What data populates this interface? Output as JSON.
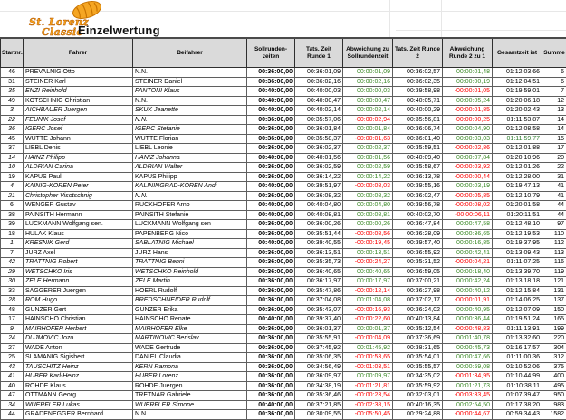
{
  "logo": {
    "line1": "St. Lorenz",
    "line2": "Classic"
  },
  "title": "Einzelwertung",
  "colors": {
    "band_cyan": "#6CE6E6",
    "dev_pos_bg": "#84C84C",
    "dev_pos_text": "#3C8A28",
    "dev_neg_bg": "#FF8060",
    "dev_neg_text": "#FF0000",
    "total_highlight_bg": "#84C84C",
    "header_bg": "#DADADA",
    "logo_orange": "#F59B1E"
  },
  "table": {
    "columns": [
      {
        "key": "nr",
        "label": "Startnr."
      },
      {
        "key": "fahrer",
        "label": "Fahrer"
      },
      {
        "key": "beifahrer",
        "label": "Beifahrer"
      },
      {
        "key": "soll",
        "label": "Sollrunden-zeiten"
      },
      {
        "key": "t1",
        "label": "Tats. Zeit Runde 1"
      },
      {
        "key": "d1",
        "label": "Abweichung zu Sollrundenzeit"
      },
      {
        "key": "t2",
        "label": "Tats. Zeit Runde 2"
      },
      {
        "key": "d2",
        "label": "Abweichung Runde 2 zu 1"
      },
      {
        "key": "total",
        "label": "Gesamtzeit ist"
      },
      {
        "key": "summe",
        "label": "Summe"
      }
    ],
    "rows": [
      {
        "nr": "46",
        "fahrer": "PREVALNIG Otto",
        "beifahrer": "N.N.",
        "soll": "00:36:00,00",
        "t1": "00:36:01,09",
        "d1": "00:00:01,09",
        "t2": "00:36:02,57",
        "d2": "00:00:01,48",
        "total": "01:12:03,66",
        "summe": "6",
        "band": false,
        "italic": false,
        "total_hl": false
      },
      {
        "nr": "31",
        "fahrer": "STEINER Karl",
        "beifahrer": "STEINER Daniel",
        "soll": "00:36:00,00",
        "t1": "00:36:02,16",
        "d1": "00:00:02,16",
        "t2": "00:36:02,35",
        "d2": "00:00:00,19",
        "total": "01:12:04,51",
        "summe": "6",
        "band": false,
        "italic": false,
        "total_hl": false
      },
      {
        "nr": "35",
        "fahrer": "ENZI Reinhold",
        "beifahrer": "FANTONI Klaus",
        "soll": "00:40:00,00",
        "t1": "00:40:00,03",
        "d1": "00:00:00,03",
        "t2": "00:39:58,98",
        "d2": "-00:00:01,05",
        "total": "01:19:59,01",
        "summe": "7",
        "band": true,
        "italic": true,
        "total_hl": false
      },
      {
        "nr": "49",
        "fahrer": "KOTSCHNIG Christian",
        "beifahrer": "N.N.",
        "soll": "00:40:00,00",
        "t1": "00:40:00,47",
        "d1": "00:00:00,47",
        "t2": "00:40:05,71",
        "d2": "00:00:05,24",
        "total": "01:20:06,18",
        "summe": "12",
        "band": false,
        "italic": false,
        "total_hl": false
      },
      {
        "nr": "3",
        "fahrer": "AICHBAUER Juergen",
        "beifahrer": "SKUK Jeanette",
        "soll": "00:40:00,00",
        "t1": "00:40:02,14",
        "d1": "00:00:02,14",
        "t2": "00:40:00,29",
        "d2": "-00:00:01,85",
        "total": "01:20:02,43",
        "summe": "13",
        "band": true,
        "italic": true,
        "total_hl": false
      },
      {
        "nr": "22",
        "fahrer": "FEUNIK Josef",
        "beifahrer": "N.N.",
        "soll": "00:36:00,00",
        "t1": "00:35:57,06",
        "d1": "-00:00:02,94",
        "t2": "00:35:56,81",
        "d2": "-00:00:00,25",
        "total": "01:11:53,87",
        "summe": "14",
        "band": false,
        "italic": true,
        "total_hl": false
      },
      {
        "nr": "36",
        "fahrer": "IGERC Josef",
        "beifahrer": "IGERC Stefanie",
        "soll": "00:36:00,00",
        "t1": "00:36:01,84",
        "d1": "00:00:01,84",
        "t2": "00:36:06,74",
        "d2": "00:00:04,90",
        "total": "01:12:08,58",
        "summe": "14",
        "band": false,
        "italic": true,
        "total_hl": false
      },
      {
        "nr": "45",
        "fahrer": "WUTTE Johann",
        "beifahrer": "WUTTE Florian",
        "soll": "00:36:00,00",
        "t1": "00:35:58,37",
        "d1": "-00:00:01,63",
        "t2": "00:36:01,40",
        "d2": "00:00:03,03",
        "total": "01:11:59,77",
        "summe": "15",
        "band": false,
        "italic": false,
        "total_hl": true
      },
      {
        "nr": "37",
        "fahrer": "LIEBL Denis",
        "beifahrer": "LIEBL Leonie",
        "soll": "00:36:00,00",
        "t1": "00:36:02,37",
        "d1": "00:00:02,37",
        "t2": "00:35:59,51",
        "d2": "-00:00:02,86",
        "total": "01:12:01,88",
        "summe": "17",
        "band": false,
        "italic": false,
        "total_hl": false
      },
      {
        "nr": "14",
        "fahrer": "HAINZ Philipp",
        "beifahrer": "HANIZ Johanna",
        "soll": "00:40:00,00",
        "t1": "00:40:01,56",
        "d1": "00:00:01,56",
        "t2": "00:40:09,40",
        "d2": "00:00:07,84",
        "total": "01:20:10,96",
        "summe": "20",
        "band": true,
        "italic": true,
        "total_hl": false
      },
      {
        "nr": "10",
        "fahrer": "ALDRIAN Carina",
        "beifahrer": "ALDRIAN Walter",
        "soll": "00:36:00,00",
        "t1": "00:36:02,59",
        "d1": "00:00:02,59",
        "t2": "00:35:58,67",
        "d2": "-00:00:03,92",
        "total": "01:12:01,26",
        "summe": "22",
        "band": false,
        "italic": true,
        "total_hl": false
      },
      {
        "nr": "19",
        "fahrer": "KAPUS Paul",
        "beifahrer": "KAPUS Philipp",
        "soll": "00:36:00,00",
        "t1": "00:36:14,22",
        "d1": "00:00:14,22",
        "t2": "00:36:13,78",
        "d2": "-00:00:00,44",
        "total": "01:12:28,00",
        "summe": "31",
        "band": false,
        "italic": false,
        "total_hl": false
      },
      {
        "nr": "4",
        "fahrer": "KAINIG-KOREN Peter",
        "beifahrer": "KALININGRAD-KOREN Andi",
        "soll": "00:40:00,00",
        "t1": "00:39:51,97",
        "d1": "-00:00:08,03",
        "t2": "00:39:55,16",
        "d2": "00:00:03,19",
        "total": "01:19:47,13",
        "summe": "41",
        "band": true,
        "italic": true,
        "total_hl": false
      },
      {
        "nr": "21",
        "fahrer": "Christopher Visotschnig",
        "beifahrer": "N.N.",
        "soll": "00:36:00,00",
        "t1": "00:36:08,32",
        "d1": "00:00:08,32",
        "t2": "00:36:02,47",
        "d2": "-00:00:05,85",
        "total": "01:12:10,79",
        "summe": "41",
        "band": false,
        "italic": true,
        "total_hl": false
      },
      {
        "nr": "6",
        "fahrer": "WENGER Gustav",
        "beifahrer": "RUCKHOFER Arno",
        "soll": "00:40:00,00",
        "t1": "00:40:04,80",
        "d1": "00:00:04,80",
        "t2": "00:39:56,78",
        "d2": "-00:00:08,02",
        "total": "01:20:01,58",
        "summe": "44",
        "band": true,
        "italic": false,
        "total_hl": false
      },
      {
        "nr": "38",
        "fahrer": "PAINSITH Hermann",
        "beifahrer": "PAINSITH Stefanie",
        "soll": "00:40:00,00",
        "t1": "00:40:08,81",
        "d1": "00:00:08,81",
        "t2": "00:40:02,70",
        "d2": "-00:00:06,11",
        "total": "01:20:11,51",
        "summe": "44",
        "band": true,
        "italic": false,
        "total_hl": false
      },
      {
        "nr": "39",
        "fahrer": "LUCKMANN Wolfgang sen.",
        "beifahrer": "LUCKMANN Wolfgang sen",
        "soll": "00:36:00,00",
        "t1": "00:36:00,26",
        "d1": "00:00:00,26",
        "t2": "00:36:47,84",
        "d2": "00:00:47,58",
        "total": "01:12:48,10",
        "summe": "97",
        "band": false,
        "italic": false,
        "total_hl": false
      },
      {
        "nr": "18",
        "fahrer": "HULAK Klaus",
        "beifahrer": "PAPENBERG Nico",
        "soll": "00:36:00,00",
        "t1": "00:35:51,44",
        "d1": "-00:00:08,56",
        "t2": "00:36:28,09",
        "d2": "00:00:36,65",
        "total": "01:12:19,53",
        "summe": "110",
        "band": false,
        "italic": false,
        "total_hl": false
      },
      {
        "nr": "1",
        "fahrer": "KRESNIK Gerd",
        "beifahrer": "SABLATNIG Michael",
        "soll": "00:40:00,00",
        "t1": "00:39:40,55",
        "d1": "-00:00:19,45",
        "t2": "00:39:57,40",
        "d2": "00:00:16,85",
        "total": "01:19:37,95",
        "summe": "112",
        "band": true,
        "italic": true,
        "total_hl": false
      },
      {
        "nr": "7",
        "fahrer": "JURZ Axel",
        "beifahrer": "JURZ Hans",
        "soll": "00:36:00,00",
        "t1": "00:36:13,51",
        "d1": "00:00:13,51",
        "t2": "00:36:55,92",
        "d2": "00:00:42,41",
        "total": "01:13:09,43",
        "summe": "113",
        "band": false,
        "italic": false,
        "total_hl": false
      },
      {
        "nr": "42",
        "fahrer": "TRATTNIG Robert",
        "beifahrer": "TRATTNIG Benni",
        "soll": "00:36:00,00",
        "t1": "00:35:35,73",
        "d1": "-00:00:24,27",
        "t2": "00:35:31,52",
        "d2": "-00:00:04,21",
        "total": "01:11:07,25",
        "summe": "116",
        "band": false,
        "italic": true,
        "total_hl": false
      },
      {
        "nr": "29",
        "fahrer": "WETSCHKO Iris",
        "beifahrer": "WETSCHKO Reinhold",
        "soll": "00:36:00,00",
        "t1": "00:36:40,65",
        "d1": "00:00:40,65",
        "t2": "00:36:59,05",
        "d2": "00:00:18,40",
        "total": "01:13:39,70",
        "summe": "119",
        "band": false,
        "italic": true,
        "total_hl": false
      },
      {
        "nr": "30",
        "fahrer": "ZELE Hermann",
        "beifahrer": "ZELE Martin",
        "soll": "00:36:00,00",
        "t1": "00:36:17,97",
        "d1": "00:00:17,97",
        "t2": "00:37:00,21",
        "d2": "00:00:42,24",
        "total": "01:13:18,18",
        "summe": "121",
        "band": false,
        "italic": true,
        "total_hl": false
      },
      {
        "nr": "33",
        "fahrer": "SAGGERER Juergen",
        "beifahrer": "HOERL Rudolf",
        "soll": "00:36:00,00",
        "t1": "00:35:47,86",
        "d1": "-00:00:12,14",
        "t2": "00:36:27,98",
        "d2": "00:00:40,12",
        "total": "01:12:15,84",
        "summe": "131",
        "band": false,
        "italic": false,
        "total_hl": false
      },
      {
        "nr": "28",
        "fahrer": "ROM Hugo",
        "beifahrer": "BREDSCHNEIDER Rudolf",
        "soll": "00:36:00,00",
        "t1": "00:37:04,08",
        "d1": "00:01:04,08",
        "t2": "00:37:02,17",
        "d2": "-00:00:01,91",
        "total": "01:14:06,25",
        "summe": "137",
        "band": false,
        "italic": true,
        "total_hl": false
      },
      {
        "nr": "48",
        "fahrer": "GUNZER Gert",
        "beifahrer": "GUNZER Erika",
        "soll": "00:36:00,00",
        "t1": "00:35:43,07",
        "d1": "-00:00:16,93",
        "t2": "00:36:24,02",
        "d2": "00:00:40,95",
        "total": "01:12:07,09",
        "summe": "150",
        "band": false,
        "italic": false,
        "total_hl": false
      },
      {
        "nr": "17",
        "fahrer": "HAINSCHO Christian",
        "beifahrer": "HAINSCHO Renate",
        "soll": "00:40:00,00",
        "t1": "00:39:37,40",
        "d1": "-00:00:22,60",
        "t2": "00:40:13,84",
        "d2": "00:00:36,44",
        "total": "01:19:51,24",
        "summe": "165",
        "band": true,
        "italic": false,
        "total_hl": false
      },
      {
        "nr": "9",
        "fahrer": "MAIRHOFER Herbert",
        "beifahrer": "MAIRHOFER Elke",
        "soll": "00:36:00,00",
        "t1": "00:36:01,37",
        "d1": "00:00:01,37",
        "t2": "00:35:12,54",
        "d2": "-00:00:48,83",
        "total": "01:11:13,91",
        "summe": "199",
        "band": false,
        "italic": true,
        "total_hl": false
      },
      {
        "nr": "24",
        "fahrer": "DUJMOVIC Jozo",
        "beifahrer": "MARTINOVIC Berislav",
        "soll": "00:36:00,00",
        "t1": "00:35:55,91",
        "d1": "-00:00:04,09",
        "t2": "00:37:36,69",
        "d2": "00:01:40,78",
        "total": "01:13:32,60",
        "summe": "220",
        "band": false,
        "italic": true,
        "total_hl": false
      },
      {
        "nr": "27",
        "fahrer": "WADE Anton",
        "beifahrer": "WADE Gertrude",
        "soll": "00:36:00,00",
        "t1": "00:37:45,92",
        "d1": "00:01:45,92",
        "t2": "00:38:31,65",
        "d2": "00:00:45,73",
        "total": "01:16:17,57",
        "summe": "304",
        "band": false,
        "italic": false,
        "total_hl": false
      },
      {
        "nr": "25",
        "fahrer": "SLAMANIG Sigisbert",
        "beifahrer": "DANIEL Claudia",
        "soll": "00:36:00,00",
        "t1": "00:35:06,35",
        "d1": "-00:00:53,65",
        "t2": "00:35:54,01",
        "d2": "00:00:47,66",
        "total": "01:11:00,36",
        "summe": "312",
        "band": false,
        "italic": false,
        "total_hl": false
      },
      {
        "nr": "43",
        "fahrer": "TAUSCHITZ Heinz",
        "beifahrer": "KERN Ramona",
        "soll": "00:36:00,00",
        "t1": "00:34:56,49",
        "d1": "-00:01:03,51",
        "t2": "00:35:55,57",
        "d2": "00:00:59,08",
        "total": "01:10:52,06",
        "summe": "375",
        "band": false,
        "italic": true,
        "total_hl": false
      },
      {
        "nr": "41",
        "fahrer": "HUBER Karl-Heinz",
        "beifahrer": "HUBER Lorenz",
        "soll": "00:36:00,00",
        "t1": "00:36:09,97",
        "d1": "00:00:09,97",
        "t2": "00:34:35,02",
        "d2": "-00:01:34,95",
        "total": "01:10:44,99",
        "summe": "400",
        "band": false,
        "italic": true,
        "total_hl": false
      },
      {
        "nr": "40",
        "fahrer": "ROHDE Klaus",
        "beifahrer": "ROHDE Juergen",
        "soll": "00:36:00,00",
        "t1": "00:34:38,19",
        "d1": "-00:01:21,81",
        "t2": "00:35:59,92",
        "d2": "00:01:21,73",
        "total": "01:10:38,11",
        "summe": "495",
        "band": false,
        "italic": false,
        "total_hl": false
      },
      {
        "nr": "47",
        "fahrer": "OTTMANN Georg",
        "beifahrer": "TRETNAR Gabriele",
        "soll": "00:36:00,00",
        "t1": "00:35:36,46",
        "d1": "-00:00:23,54",
        "t2": "00:32:03,01",
        "d2": "-00:03:33,45",
        "total": "01:07:39,47",
        "summe": "950",
        "band": false,
        "italic": false,
        "total_hl": false
      },
      {
        "nr": "34",
        "fahrer": "WUERFLER Lukas",
        "beifahrer": "WUERFLER Simone",
        "soll": "00:40:00,00",
        "t1": "00:37:21,85",
        "d1": "-00:02:38,15",
        "t2": "00:40:16,35",
        "d2": "00:02:54,50",
        "total": "01:17:38,20",
        "summe": "983",
        "band": true,
        "italic": true,
        "total_hl": false
      },
      {
        "nr": "44",
        "fahrer": "GRADENEGGER Bernhard",
        "beifahrer": "N.N.",
        "soll": "00:36:00,00",
        "t1": "00:30:09,55",
        "d1": "-00:05:50,45",
        "t2": "00:29:24,88",
        "d2": "-00:00:44,67",
        "total": "00:59:34,43",
        "summe": "1582",
        "band": false,
        "italic": false,
        "total_hl": false
      }
    ]
  }
}
